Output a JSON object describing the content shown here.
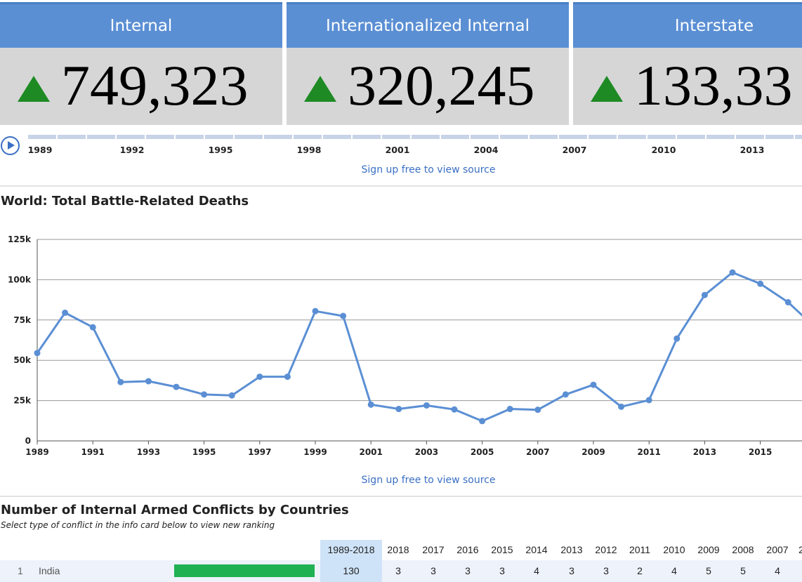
{
  "cards": [
    {
      "label": "Internal",
      "value": "749,323",
      "icon": "up-triangle-icon"
    },
    {
      "label": "Internationalized Internal",
      "value": "320,245",
      "icon": "up-triangle-icon"
    },
    {
      "label": "Interstate",
      "value": "133,33",
      "icon": "up-triangle-icon"
    }
  ],
  "timeline": {
    "years": [
      "1989",
      "1992",
      "1995",
      "1998",
      "2001",
      "2004",
      "2007",
      "2010",
      "2013"
    ],
    "play_icon": "play-circle-icon"
  },
  "source_link": "Sign up free to view source",
  "chart_section": {
    "title": "World: Total Battle-Related Deaths"
  },
  "chart_data": {
    "type": "line",
    "title": "World: Total Battle-Related Deaths",
    "xlabel": "",
    "ylabel": "",
    "x": [
      1989,
      1990,
      1991,
      1992,
      1993,
      1994,
      1995,
      1996,
      1997,
      1998,
      1999,
      2000,
      2001,
      2002,
      2003,
      2004,
      2005,
      2006,
      2007,
      2008,
      2009,
      2010,
      2011,
      2012,
      2013,
      2014,
      2015,
      2016,
      2017
    ],
    "series": [
      {
        "name": "",
        "values": [
          54500,
          79500,
          70500,
          36500,
          37000,
          33500,
          28800,
          28200,
          39800,
          39800,
          80500,
          77500,
          22500,
          19800,
          22000,
          19500,
          12300,
          19800,
          19300,
          28800,
          34800,
          21200,
          25300,
          63500,
          90500,
          104500,
          97500,
          86000,
          70000
        ]
      }
    ],
    "ylim": [
      0,
      125000
    ],
    "xlim": [
      1989,
      2016.5
    ],
    "yticks": [
      0,
      25000,
      50000,
      75000,
      100000,
      125000
    ],
    "ytick_labels": [
      "0",
      "25k",
      "50k",
      "75k",
      "100k",
      "125k"
    ],
    "xticks": [
      "1989",
      "1991",
      "1993",
      "1995",
      "1997",
      "1999",
      "2001",
      "2003",
      "2005",
      "2007",
      "2009",
      "2011",
      "2013",
      "2015"
    ],
    "grid": true,
    "line_color": "#5b8fd4"
  },
  "ranking": {
    "title": "Number of Internal Armed Conflicts by Countries",
    "subtitle": "Select type of conflict in the info card below to view new ranking",
    "columns": [
      "1989-2018",
      "2018",
      "2017",
      "2016",
      "2015",
      "2014",
      "2013",
      "2012",
      "2011",
      "2010",
      "2009",
      "2008",
      "2007",
      "2"
    ],
    "rows": [
      {
        "rank": "1",
        "country": "India",
        "values": [
          "130",
          "3",
          "3",
          "3",
          "3",
          "4",
          "3",
          "3",
          "2",
          "4",
          "5",
          "5",
          "4",
          ""
        ]
      }
    ]
  },
  "colors": {
    "accent": "#5b8fd4",
    "up": "#1e8a24",
    "bar": "#1fb152",
    "highlight": "#cfe3f8"
  }
}
